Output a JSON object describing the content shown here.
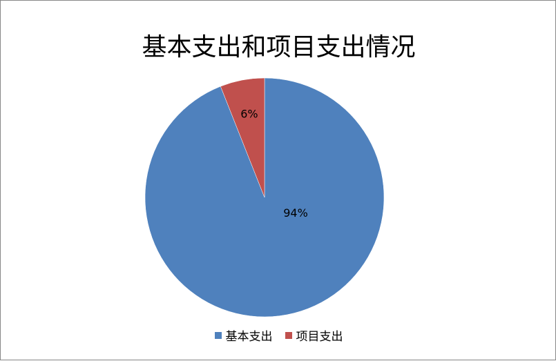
{
  "chart_data": {
    "type": "pie",
    "title": "基本支出和项目支出情况",
    "categories": [
      "基本支出",
      "项目支出"
    ],
    "values": [
      94,
      6
    ],
    "data_labels": [
      "94%",
      "6%"
    ],
    "colors": [
      "#4F81BD",
      "#C0504D"
    ],
    "legend_position": "bottom"
  }
}
